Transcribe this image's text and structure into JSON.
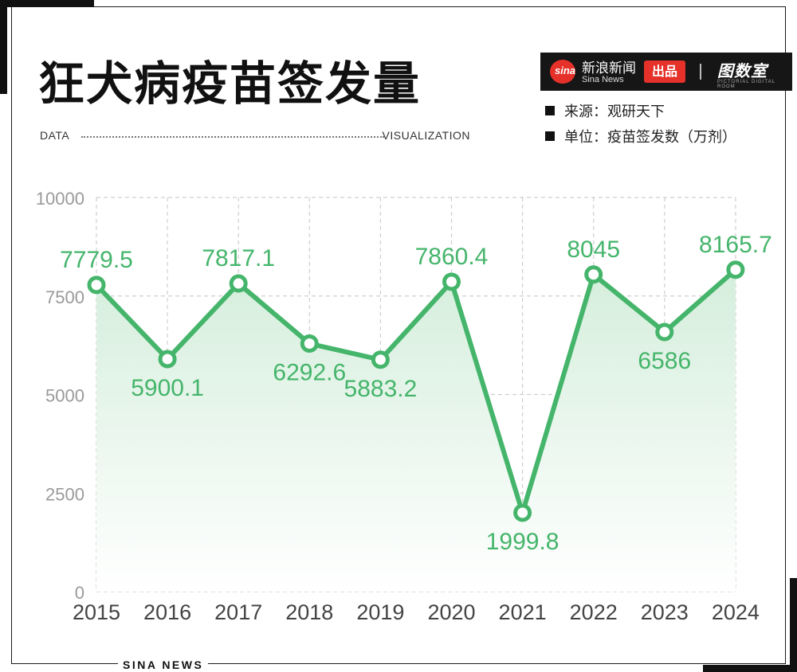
{
  "header": {
    "title": "狂犬病疫苗签发量",
    "data_label": "DATA",
    "visualization_label": "VISUALIZATION"
  },
  "brand": {
    "sina_logo": "sina",
    "sina_name_cn": "新浪新闻",
    "sina_name_en": "Sina News",
    "badge": "出品",
    "separator": "|",
    "partner_logo": "图数室",
    "partner_sub": "PICTORIAL DIGITAL ROOM"
  },
  "meta": {
    "source": "来源：观研天下",
    "unit": "单位：疫苗签发数（万剂）"
  },
  "footer": {
    "text": "SINA NEWS"
  },
  "colors": {
    "line": "#45b56b",
    "label": "#45b56b",
    "area_top": "#d5eedc",
    "area_bottom": "#ffffff",
    "grid": "#cfcfcf",
    "axis_text": "#9a9a9a",
    "x_text": "#444444"
  },
  "chart_data": {
    "type": "line",
    "title": "狂犬病疫苗签发量",
    "x": [
      "2015",
      "2016",
      "2017",
      "2018",
      "2019",
      "2020",
      "2021",
      "2022",
      "2023",
      "2024"
    ],
    "series": [
      {
        "values": [
          7779.5,
          5900.1,
          7817.1,
          6292.6,
          5883.2,
          7860.4,
          1999.8,
          8045,
          6586,
          8165.7
        ],
        "labels": [
          "7779.5",
          "5900.1",
          "7817.1",
          "6292.6",
          "5883.2",
          "7860.4",
          "1999.8",
          "8045",
          "6586",
          "8165.7"
        ]
      }
    ],
    "ylim": [
      0,
      10000
    ],
    "yticks": [
      "0",
      "2500",
      "5000",
      "7500",
      "10000"
    ],
    "ytick_values": [
      0,
      2500,
      5000,
      7500,
      10000
    ],
    "label_positions": [
      "above",
      "below",
      "above",
      "below",
      "below",
      "above",
      "below",
      "above",
      "below",
      "above"
    ],
    "grid": true,
    "legend": "none",
    "xlabel": "",
    "ylabel": ""
  }
}
